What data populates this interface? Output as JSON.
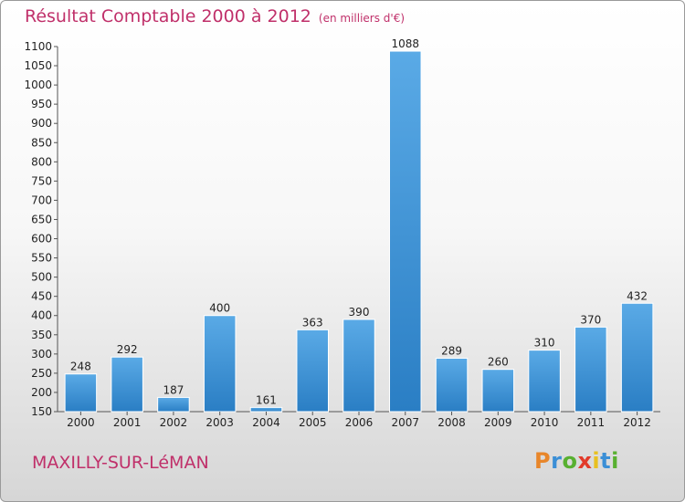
{
  "title": "Résultat Comptable 2000 à 2012",
  "unit": "(en milliers d'€)",
  "commune": "MAXILLY-SUR-LéMAN",
  "logo": {
    "letters": [
      "P",
      "r",
      "o",
      "x",
      "i",
      "t",
      "i"
    ],
    "colors": [
      "#e8862a",
      "#3b8fd6",
      "#58b030",
      "#e23a2a",
      "#e8c020",
      "#3b8fd6",
      "#58b030"
    ]
  },
  "colors": {
    "bar_light": "#5aaae6",
    "bar_dark": "#2a7ec4",
    "title": "#c0306a"
  },
  "chart_data": {
    "type": "bar",
    "title": "Résultat Comptable 2000 à 2012",
    "xlabel": "",
    "ylabel": "",
    "categories": [
      "2000",
      "2001",
      "2002",
      "2003",
      "2004",
      "2005",
      "2006",
      "2007",
      "2008",
      "2009",
      "2010",
      "2011",
      "2012"
    ],
    "values": [
      248,
      292,
      187,
      400,
      161,
      363,
      390,
      1088,
      289,
      260,
      310,
      370,
      432
    ],
    "ylim": [
      150,
      1100
    ],
    "yticks": [
      150,
      200,
      250,
      300,
      350,
      400,
      450,
      500,
      550,
      600,
      650,
      700,
      750,
      800,
      850,
      900,
      950,
      1000,
      1050,
      1100
    ],
    "grid": false
  }
}
